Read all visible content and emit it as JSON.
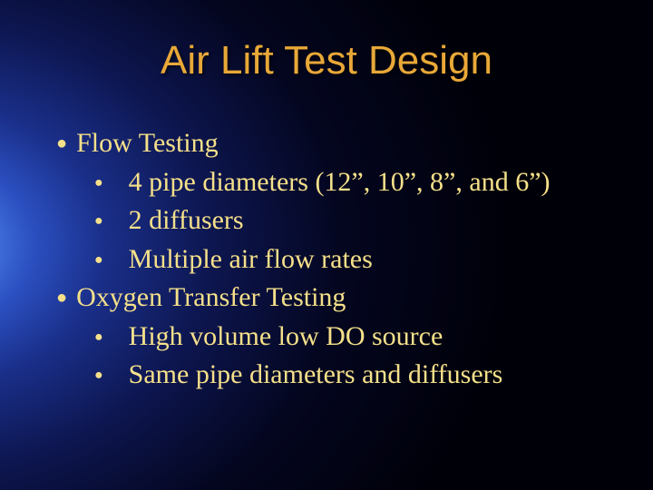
{
  "slide": {
    "title": "Air Lift Test Design",
    "title_color": "#e8a838",
    "title_font": "Arial",
    "title_fontsize": 44,
    "body_color": "#f5e08a",
    "body_font": "Times New Roman",
    "body_fontsize": 30,
    "bullet_char": "●",
    "background": {
      "type": "radial-gradient",
      "center": "left-middle",
      "stops": [
        "#6fa8ff",
        "#4a7fe8",
        "#2b4fc0",
        "#1a2f8a",
        "#0d1650",
        "#040620",
        "#000008"
      ]
    },
    "lines": [
      {
        "level": 0,
        "text": "Flow Testing"
      },
      {
        "level": 1,
        "text": "4 pipe diameters (12”, 10”, 8”, and 6”)"
      },
      {
        "level": 1,
        "text": "2 diffusers"
      },
      {
        "level": 1,
        "text": "Multiple air flow rates"
      },
      {
        "level": 0,
        "text": "Oxygen Transfer Testing"
      },
      {
        "level": 1,
        "text": "High volume low DO source"
      },
      {
        "level": 1,
        "text": "Same pipe diameters and diffusers"
      }
    ]
  }
}
